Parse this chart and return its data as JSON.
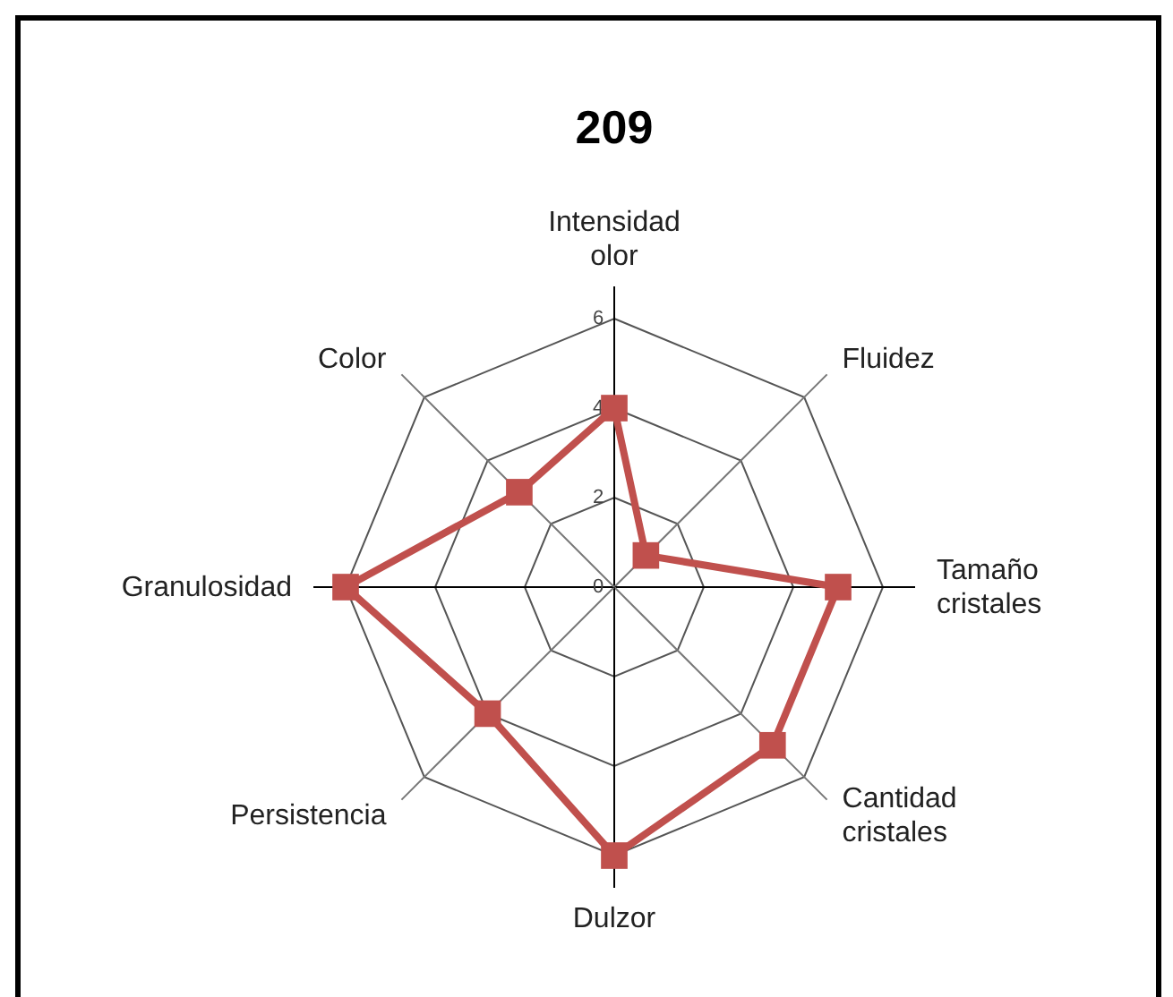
{
  "chart_data": {
    "type": "radar",
    "title": "209",
    "categories": [
      "Intensidad olor",
      "Fluidez",
      "Tamaño cristales",
      "Cantidad cristales",
      "Dulzor",
      "Persistencia",
      "Granulosidad",
      "Color"
    ],
    "series": [
      {
        "color": "#c0504d",
        "values": [
          4,
          1,
          5,
          5,
          6,
          4,
          6,
          3
        ]
      }
    ],
    "ylim": [
      0,
      6
    ],
    "yticks": [
      0,
      2,
      4,
      6
    ],
    "marker": "square"
  }
}
